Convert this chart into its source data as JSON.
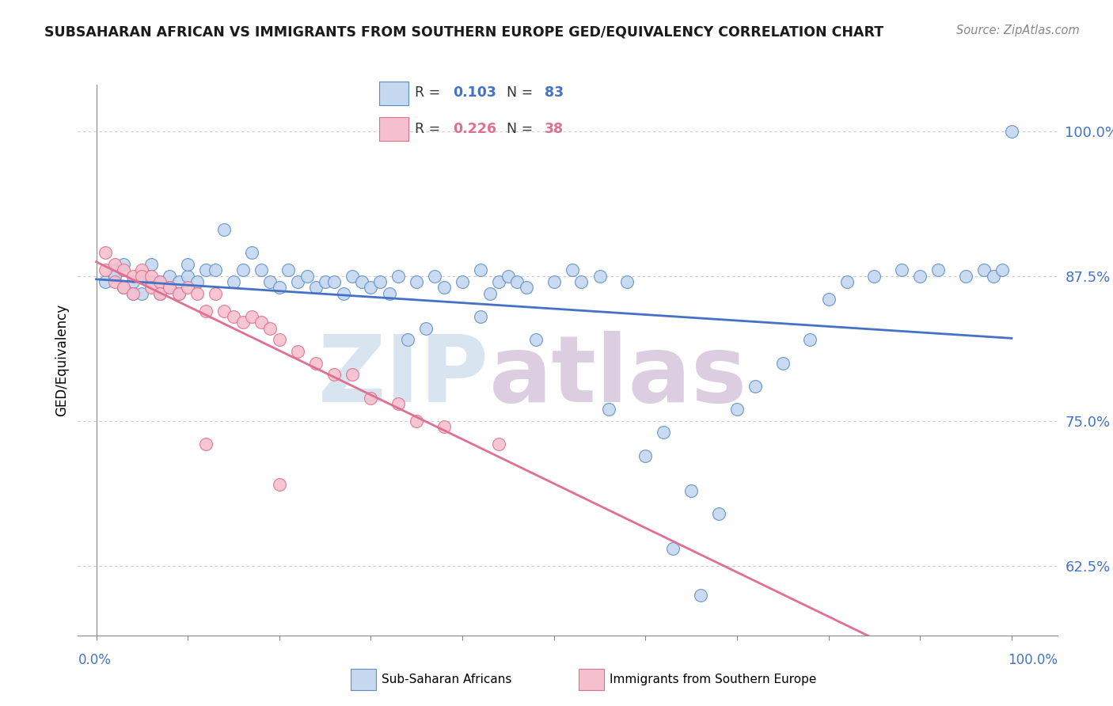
{
  "title": "SUBSAHARAN AFRICAN VS IMMIGRANTS FROM SOUTHERN EUROPE GED/EQUIVALENCY CORRELATION CHART",
  "source": "Source: ZipAtlas.com",
  "ylabel": "GED/Equivalency",
  "ytick_labels": [
    "62.5%",
    "75.0%",
    "87.5%",
    "100.0%"
  ],
  "ytick_values": [
    0.625,
    0.75,
    0.875,
    1.0
  ],
  "xlim": [
    -0.02,
    1.05
  ],
  "ylim": [
    0.565,
    1.04
  ],
  "legend_r1": "0.103",
  "legend_n1": "83",
  "legend_r2": "0.226",
  "legend_n2": "38",
  "blue_fill": "#c5d8f0",
  "blue_edge": "#5b8ec9",
  "pink_fill": "#f5c0ce",
  "pink_edge": "#e0708a",
  "blue_line": "#4472c4",
  "pink_line": "#e07090",
  "title_color": "#1a1a1a",
  "axis_label_color": "#4472c4",
  "source_color": "#888888",
  "watermark_color1": "#d8e4f0",
  "watermark_color2": "#dccde0",
  "blue_x": [
    0.01,
    0.02,
    0.02,
    0.03,
    0.03,
    0.04,
    0.04,
    0.05,
    0.05,
    0.06,
    0.06,
    0.07,
    0.07,
    0.08,
    0.08,
    0.09,
    0.09,
    0.1,
    0.1,
    0.11,
    0.12,
    0.13,
    0.14,
    0.15,
    0.16,
    0.17,
    0.18,
    0.19,
    0.2,
    0.21,
    0.22,
    0.23,
    0.24,
    0.25,
    0.26,
    0.27,
    0.28,
    0.29,
    0.3,
    0.31,
    0.32,
    0.33,
    0.35,
    0.37,
    0.38,
    0.4,
    0.42,
    0.43,
    0.44,
    0.45,
    0.46,
    0.47,
    0.5,
    0.52,
    0.55,
    0.58,
    0.6,
    0.62,
    0.65,
    0.68,
    0.7,
    0.72,
    0.75,
    0.78,
    0.8,
    0.82,
    0.85,
    0.88,
    0.9,
    0.92,
    0.95,
    0.97,
    0.98,
    0.99,
    1.0,
    0.34,
    0.36,
    0.42,
    0.48,
    0.53,
    0.56,
    0.63,
    0.66
  ],
  "blue_y": [
    0.87,
    0.88,
    0.875,
    0.865,
    0.885,
    0.87,
    0.86,
    0.875,
    0.86,
    0.87,
    0.885,
    0.86,
    0.87,
    0.875,
    0.865,
    0.87,
    0.86,
    0.875,
    0.885,
    0.87,
    0.88,
    0.88,
    0.915,
    0.87,
    0.88,
    0.895,
    0.88,
    0.87,
    0.865,
    0.88,
    0.87,
    0.875,
    0.865,
    0.87,
    0.87,
    0.86,
    0.875,
    0.87,
    0.865,
    0.87,
    0.86,
    0.875,
    0.87,
    0.875,
    0.865,
    0.87,
    0.88,
    0.86,
    0.87,
    0.875,
    0.87,
    0.865,
    0.87,
    0.88,
    0.875,
    0.87,
    0.72,
    0.74,
    0.69,
    0.67,
    0.76,
    0.78,
    0.8,
    0.82,
    0.855,
    0.87,
    0.875,
    0.88,
    0.875,
    0.88,
    0.875,
    0.88,
    0.875,
    0.88,
    1.0,
    0.82,
    0.83,
    0.84,
    0.82,
    0.87,
    0.76,
    0.64,
    0.6
  ],
  "pink_x": [
    0.01,
    0.01,
    0.02,
    0.02,
    0.03,
    0.03,
    0.04,
    0.04,
    0.05,
    0.05,
    0.06,
    0.06,
    0.07,
    0.07,
    0.08,
    0.09,
    0.1,
    0.11,
    0.12,
    0.13,
    0.14,
    0.15,
    0.16,
    0.17,
    0.18,
    0.19,
    0.2,
    0.22,
    0.24,
    0.26,
    0.28,
    0.3,
    0.33,
    0.35,
    0.38,
    0.44,
    0.12,
    0.2
  ],
  "pink_y": [
    0.895,
    0.88,
    0.885,
    0.87,
    0.88,
    0.865,
    0.875,
    0.86,
    0.88,
    0.875,
    0.875,
    0.865,
    0.87,
    0.86,
    0.865,
    0.86,
    0.865,
    0.86,
    0.845,
    0.86,
    0.845,
    0.84,
    0.835,
    0.84,
    0.835,
    0.83,
    0.82,
    0.81,
    0.8,
    0.79,
    0.79,
    0.77,
    0.765,
    0.75,
    0.745,
    0.73,
    0.73,
    0.695
  ]
}
